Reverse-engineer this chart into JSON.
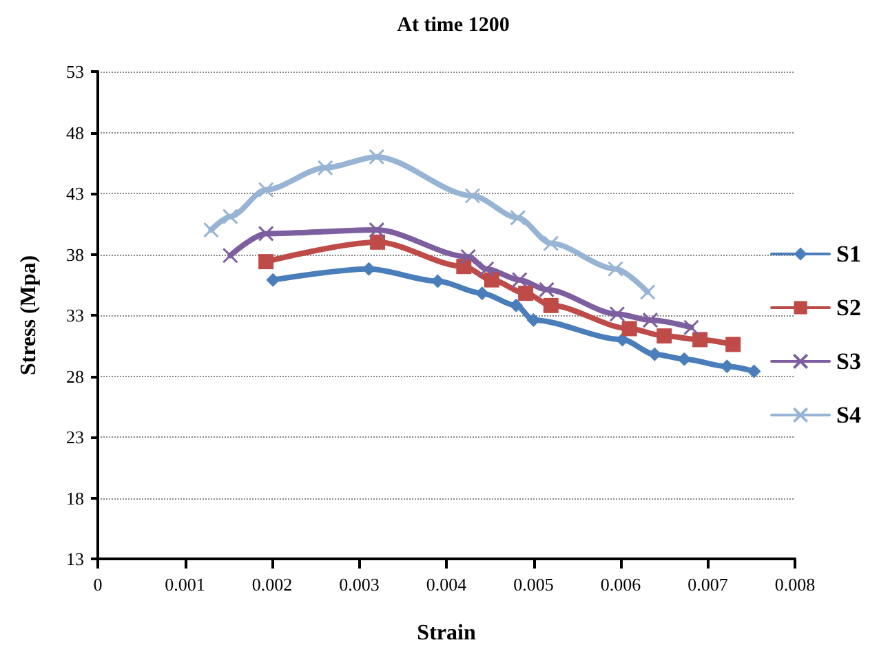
{
  "chart_data": {
    "type": "line",
    "title": "At time 1200",
    "xlabel": "Strain",
    "ylabel": "Stress (Mpa)",
    "xlim": [
      0,
      0.008
    ],
    "xticks": [
      0,
      0.001,
      0.002,
      0.003,
      0.004,
      0.005,
      0.006,
      0.007,
      0.008
    ],
    "ylim": [
      13,
      53
    ],
    "yticks": [
      13,
      18,
      23,
      28,
      33,
      38,
      43,
      48,
      53
    ],
    "grid": "y",
    "legend": "right",
    "line_style": "solid",
    "series": [
      {
        "name": "S1",
        "color": "#4a7ebb",
        "marker": "diamond",
        "x": [
          0.00201,
          0.00311,
          0.0039,
          0.00441,
          0.0048,
          0.005,
          0.00602,
          0.00639,
          0.00673,
          0.00722,
          0.00753
        ],
        "values": [
          35.9,
          36.8,
          35.8,
          34.8,
          33.8,
          32.6,
          31.0,
          29.8,
          29.4,
          28.8,
          28.4
        ]
      },
      {
        "name": "S2",
        "color": "#be4b48",
        "marker": "square",
        "x": [
          0.00193,
          0.00321,
          0.0042,
          0.00452,
          0.00491,
          0.0052,
          0.0061,
          0.0065,
          0.00691,
          0.00729
        ],
        "values": [
          37.4,
          39.0,
          37.0,
          35.9,
          34.8,
          33.8,
          31.9,
          31.3,
          31.0,
          30.6
        ]
      },
      {
        "name": "S3",
        "color": "#7d5fa0",
        "marker": "cross",
        "x": [
          0.00152,
          0.00193,
          0.0032,
          0.00425,
          0.00446,
          0.00484,
          0.00515,
          0.00596,
          0.00634,
          0.00681
        ],
        "values": [
          37.9,
          39.7,
          40.0,
          37.8,
          36.8,
          35.9,
          35.1,
          33.1,
          32.6,
          32.0
        ]
      },
      {
        "name": "S4",
        "color": "#98b4d4",
        "marker": "cross",
        "x": [
          0.0013,
          0.00152,
          0.00193,
          0.00261,
          0.0032,
          0.0043,
          0.00482,
          0.0052,
          0.00594,
          0.00631
        ],
        "values": [
          40.0,
          41.1,
          43.3,
          45.1,
          46.0,
          42.8,
          41.0,
          38.9,
          36.8,
          34.9
        ]
      }
    ]
  }
}
